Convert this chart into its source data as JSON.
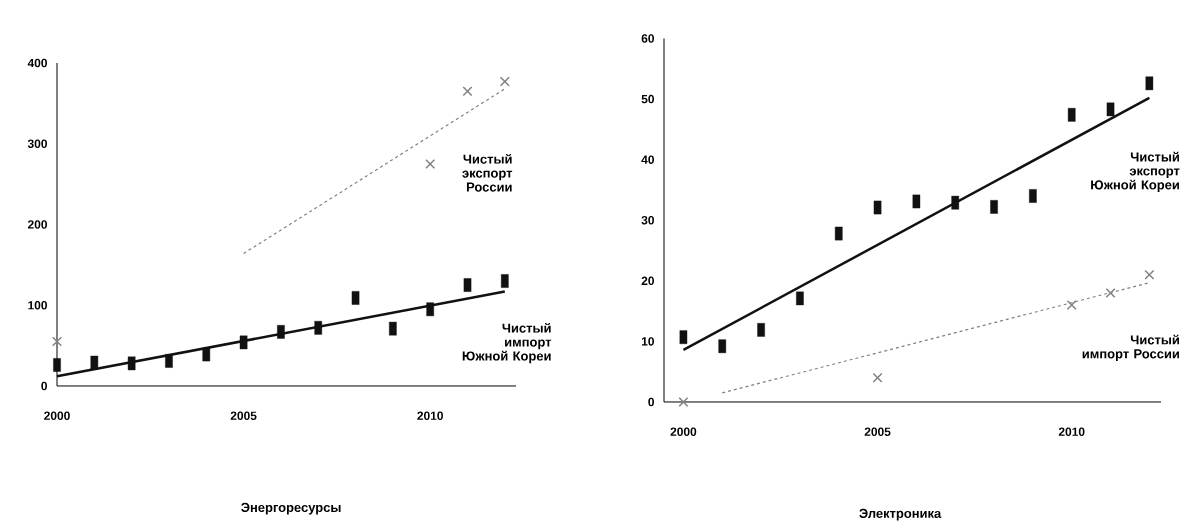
{
  "chart_data": [
    {
      "type": "scatter",
      "title": "Энергоресурсы",
      "x": [
        2000,
        2001,
        2002,
        2003,
        2004,
        2005,
        2006,
        2007,
        2008,
        2009,
        2010,
        2011,
        2012
      ],
      "xlim": [
        2000,
        2012.3
      ],
      "ylim": [
        0,
        400
      ],
      "xticks": [
        2000,
        2005,
        2010
      ],
      "yticks": [
        0,
        100,
        200,
        300,
        400
      ],
      "series": [
        {
          "name": "Чистый импорт Южной Кореи",
          "color": "#111111",
          "marker": "square",
          "values": [
            26,
            29,
            28,
            31,
            39,
            54,
            67,
            72,
            109,
            71,
            95,
            125,
            130
          ]
        },
        {
          "type": "line",
          "color": "#111111",
          "x": [
            2000,
            2012
          ],
          "values": [
            12,
            117
          ]
        },
        {
          "name": "Чистый экспорт России",
          "color": "#808080",
          "marker": "cross",
          "x": [
            2000,
            2010,
            2011,
            2012
          ],
          "values": [
            55,
            275,
            365,
            377
          ]
        },
        {
          "type": "line",
          "color": "#808080",
          "line_style": "dashed",
          "x": [
            2005,
            2012
          ],
          "values": [
            164,
            368
          ]
        }
      ]
    },
    {
      "type": "scatter",
      "title": "Электроника",
      "x": [
        2000,
        2001,
        2002,
        2003,
        2004,
        2005,
        2006,
        2007,
        2008,
        2009,
        2010,
        2011,
        2012
      ],
      "xlim": [
        1999.5,
        2012.3
      ],
      "ylim": [
        0,
        60
      ],
      "xticks": [
        2000,
        2005,
        2010
      ],
      "yticks": [
        0,
        10,
        20,
        30,
        40,
        50,
        60
      ],
      "series": [
        {
          "name": "Чистый экспорт Южной Кореи",
          "color": "#111111",
          "marker": "square",
          "values": [
            10.7,
            9.2,
            11.9,
            17.1,
            27.8,
            32.1,
            33.1,
            32.9,
            32.2,
            34,
            47.4,
            48.3,
            52.6
          ]
        },
        {
          "type": "line",
          "color": "#111111",
          "x": [
            2000,
            2012
          ],
          "values": [
            8.6,
            50.2
          ]
        },
        {
          "name": "Чистый импорт России",
          "color": "#808080",
          "marker": "cross",
          "x": [
            2000,
            2005,
            2010,
            2011,
            2012
          ],
          "values": [
            0,
            4,
            16,
            18,
            21
          ]
        },
        {
          "type": "line",
          "color": "#808080",
          "line_style": "dashed",
          "x": [
            2001,
            2012
          ],
          "values": [
            1.5,
            19.7
          ]
        }
      ]
    }
  ]
}
